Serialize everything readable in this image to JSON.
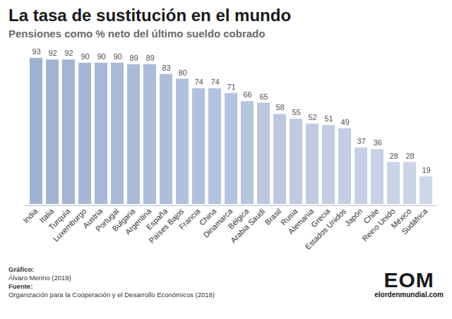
{
  "chart_data": {
    "type": "bar",
    "title": "La tasa de sustitución en el mundo",
    "subtitle": "Pensiones como % neto del último sueldo cobrado",
    "categories": [
      "India",
      "Italia",
      "Turquía",
      "Luxemburgo",
      "Austria",
      "Portugal",
      "Bulgaria",
      "Argentina",
      "España",
      "Países Bajos",
      "Francia",
      "China",
      "Dinamarca",
      "Bélgica",
      "Arabia Saudí",
      "Brasil",
      "Rusia",
      "Alemania",
      "Grecia",
      "Estados Unidos",
      "Japón",
      "Chile",
      "Reino Unido",
      "México",
      "Sudáfrica"
    ],
    "values": [
      93,
      92,
      92,
      90,
      90,
      90,
      89,
      89,
      83,
      80,
      74,
      74,
      71,
      66,
      65,
      58,
      55,
      52,
      51,
      49,
      37,
      36,
      28,
      28,
      19
    ],
    "colors": [
      "#9fb1d3",
      "#a1b3d4",
      "#a3b4d5",
      "#a5b6d6",
      "#a7b7d7",
      "#a9b9d7",
      "#abbad8",
      "#acbcd9",
      "#aebdda",
      "#b0bfdb",
      "#b2c0dc",
      "#b4c2dd",
      "#b6c3de",
      "#b8c5de",
      "#bac7df",
      "#bcc8e0",
      "#becae1",
      "#c0cbe2",
      "#c2cde3",
      "#c3cee4",
      "#c5d0e5",
      "#c7d1e5",
      "#c9d3e6",
      "#cbd4e7",
      "#cdd6e8"
    ],
    "data_labels": true,
    "tick_labels": "x",
    "grid": false,
    "footer": {
      "chart_label": "Gráfico:",
      "chart_author": "Álvaro Merino (2019)",
      "source_label": "Fuente:",
      "source": "Organización para la Cooperación y el Desarrollo Económicos (2018)"
    },
    "logo": {
      "text": "EOM",
      "site": "elordenmundial.com"
    }
  }
}
